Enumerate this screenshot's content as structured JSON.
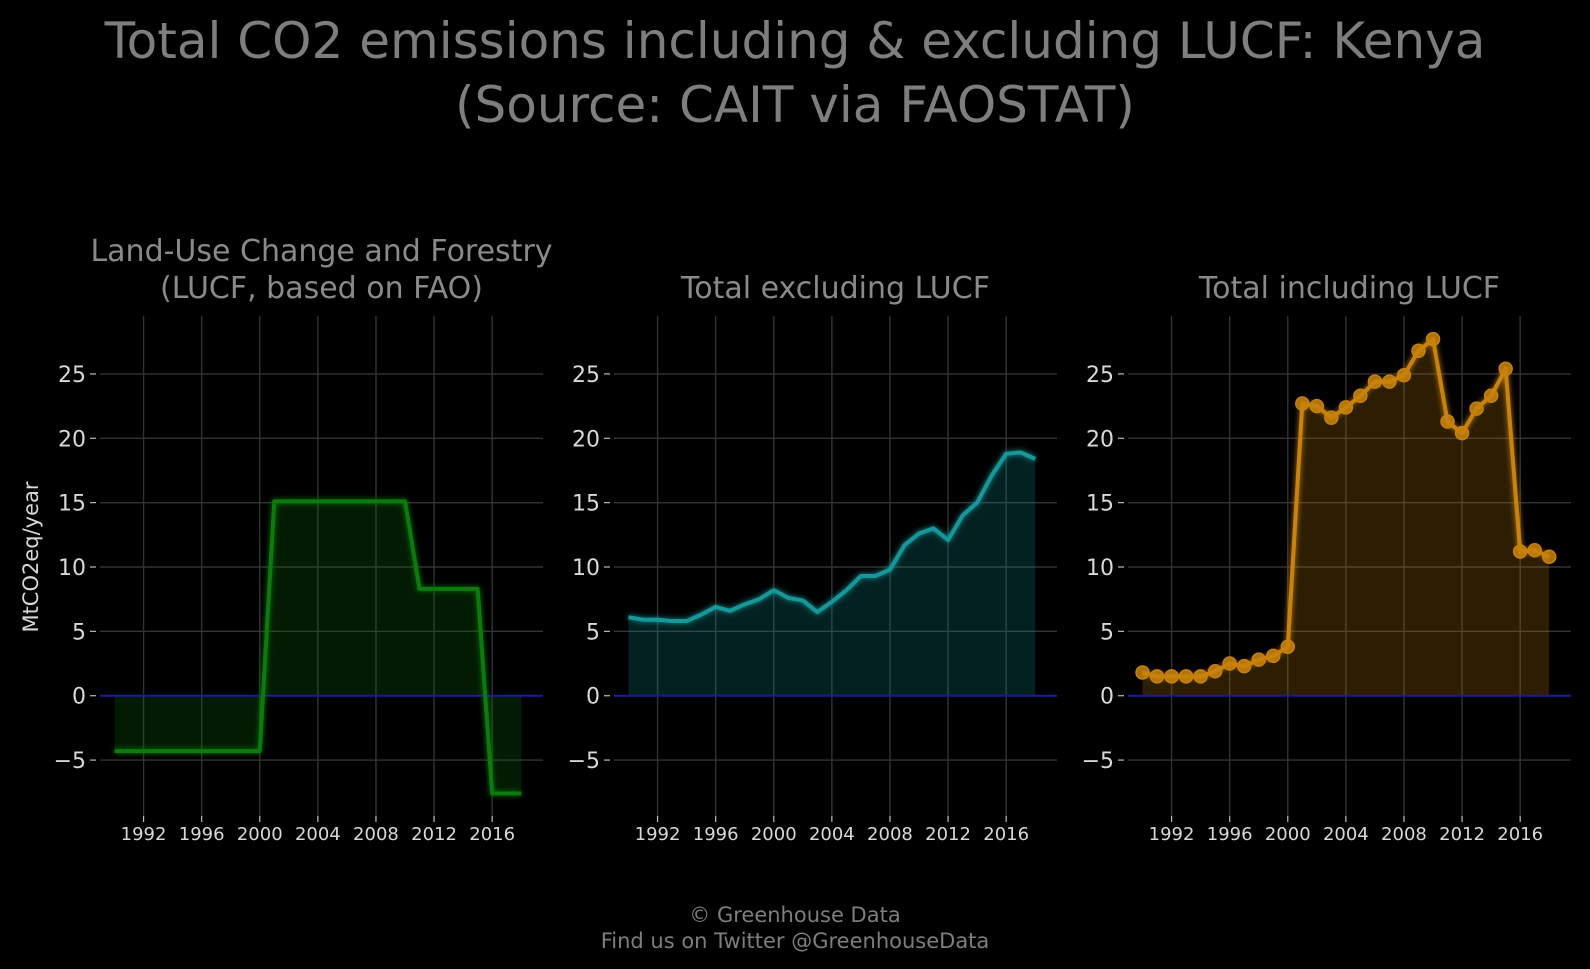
{
  "title_line1": "Total CO2 emissions including & excluding LUCF: Kenya",
  "title_line2": "(Source: CAIT via FAOSTAT)",
  "footer_line1": "© Greenhouse Data",
  "footer_line2": "Find us on Twitter @GreenhouseData",
  "colors": {
    "background": "#000000",
    "grid": "#333333",
    "zero_line": "#1a1aa0",
    "lucf": "#0e7a0e",
    "excl": "#14989a",
    "incl": "#c8820c"
  },
  "chart_data": [
    {
      "type": "area",
      "panel": "lucf",
      "title_lines": [
        "Land-Use Change and Forestry",
        "(LUCF, based on FAO)"
      ],
      "ylabel": "MtCO2eq/year",
      "xlim": [
        1989,
        2019.5
      ],
      "ylim": [
        -9.5,
        29.5
      ],
      "y_ticks": [
        -5,
        0,
        5,
        10,
        15,
        20,
        25
      ],
      "y_tick_labels": [
        "−5",
        "0",
        "5",
        "10",
        "15",
        "20",
        "25"
      ],
      "x_ticks": [
        1992,
        1996,
        2000,
        2004,
        2008,
        2012,
        2016
      ],
      "x_tick_labels": [
        "1992",
        "1996",
        "2000",
        "2004",
        "2008",
        "2012",
        "2016"
      ],
      "markers": false,
      "x": [
        1990,
        1991,
        1992,
        1993,
        1994,
        1995,
        1996,
        1997,
        1998,
        1999,
        2000,
        2001,
        2002,
        2003,
        2004,
        2005,
        2006,
        2007,
        2008,
        2009,
        2010,
        2011,
        2012,
        2013,
        2014,
        2015,
        2016,
        2017,
        2018
      ],
      "values": [
        -4.3,
        -4.3,
        -4.3,
        -4.3,
        -4.3,
        -4.3,
        -4.3,
        -4.3,
        -4.3,
        -4.3,
        -4.3,
        15.1,
        15.1,
        15.1,
        15.1,
        15.1,
        15.1,
        15.1,
        15.1,
        15.1,
        15.1,
        8.3,
        8.3,
        8.3,
        8.3,
        8.3,
        -7.6,
        -7.6,
        -7.6
      ]
    },
    {
      "type": "area",
      "panel": "excl",
      "title_lines": [
        "Total excluding LUCF"
      ],
      "ylabel": "",
      "xlim": [
        1989,
        2019.5
      ],
      "ylim": [
        -9.5,
        29.5
      ],
      "y_ticks": [
        -5,
        0,
        5,
        10,
        15,
        20,
        25
      ],
      "y_tick_labels": [
        "−5",
        "0",
        "5",
        "10",
        "15",
        "20",
        "25"
      ],
      "x_ticks": [
        1992,
        1996,
        2000,
        2004,
        2008,
        2012,
        2016
      ],
      "x_tick_labels": [
        "1992",
        "1996",
        "2000",
        "2004",
        "2008",
        "2012",
        "2016"
      ],
      "markers": false,
      "x": [
        1990,
        1991,
        1992,
        1993,
        1994,
        1995,
        1996,
        1997,
        1998,
        1999,
        2000,
        2001,
        2002,
        2003,
        2004,
        2005,
        2006,
        2007,
        2008,
        2009,
        2010,
        2011,
        2012,
        2013,
        2014,
        2015,
        2016,
        2017,
        2018
      ],
      "values": [
        6.1,
        5.9,
        5.9,
        5.8,
        5.8,
        6.3,
        6.9,
        6.6,
        7.1,
        7.5,
        8.2,
        7.6,
        7.4,
        6.5,
        7.3,
        8.2,
        9.3,
        9.3,
        9.8,
        11.7,
        12.6,
        13.0,
        12.1,
        14.0,
        15.0,
        17.1,
        18.8,
        18.9,
        18.4
      ]
    },
    {
      "type": "area",
      "panel": "incl",
      "title_lines": [
        "Total including LUCF"
      ],
      "ylabel": "",
      "xlim": [
        1989,
        2019.5
      ],
      "ylim": [
        -9.5,
        29.5
      ],
      "y_ticks": [
        -5,
        0,
        5,
        10,
        15,
        20,
        25
      ],
      "y_tick_labels": [
        "−5",
        "0",
        "5",
        "10",
        "15",
        "20",
        "25"
      ],
      "x_ticks": [
        1992,
        1996,
        2000,
        2004,
        2008,
        2012,
        2016
      ],
      "x_tick_labels": [
        "1992",
        "1996",
        "2000",
        "2004",
        "2008",
        "2012",
        "2016"
      ],
      "markers": true,
      "x": [
        1990,
        1991,
        1992,
        1993,
        1994,
        1995,
        1996,
        1997,
        1998,
        1999,
        2000,
        2001,
        2002,
        2003,
        2004,
        2005,
        2006,
        2007,
        2008,
        2009,
        2010,
        2011,
        2012,
        2013,
        2014,
        2015,
        2016,
        2017,
        2018
      ],
      "values": [
        1.8,
        1.5,
        1.5,
        1.5,
        1.5,
        1.9,
        2.5,
        2.3,
        2.8,
        3.1,
        3.8,
        22.7,
        22.5,
        21.6,
        22.4,
        23.3,
        24.4,
        24.4,
        24.9,
        26.8,
        27.7,
        21.3,
        20.4,
        22.3,
        23.3,
        25.4,
        11.2,
        11.3,
        10.8
      ]
    }
  ]
}
